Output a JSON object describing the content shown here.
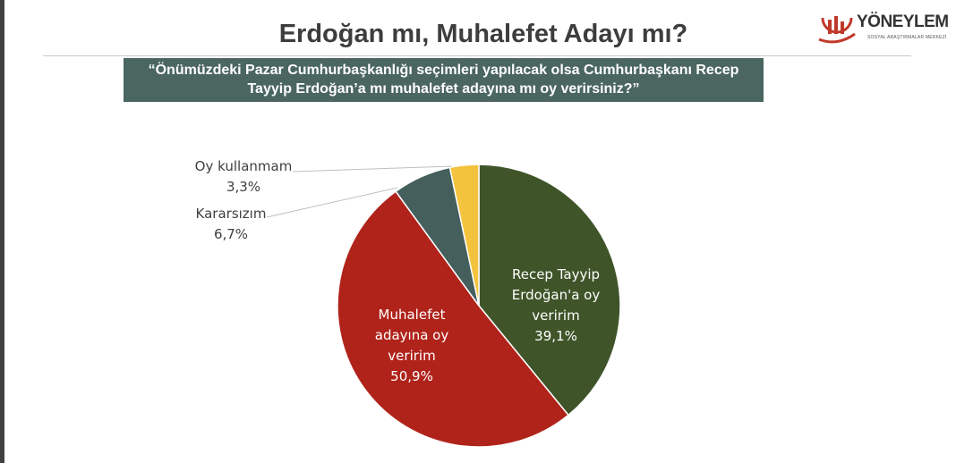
{
  "header": {
    "title": "Erdoğan mı, Muhalefet Adayı mı?",
    "question_line1": "“Önümüzdeki Pazar Cumhurbaşkanlığı seçimleri yapılacak olsa Cumhurbaşkanı Recep",
    "question_line2": "Tayyip Erdoğan’a mı muhalefet adayına mı oy verirsiniz?”"
  },
  "logo": {
    "name": "YÖNEYLEM",
    "subtitle": "SOSYAL ARAŞTIRMALAR MERKEZİ",
    "color": "#c0392b"
  },
  "chart_data": {
    "type": "pie",
    "start": "12 o'clock, clockwise",
    "slices": [
      {
        "label_lines": [
          "Recep Tayyip",
          "Erdoğan'a oy",
          "veririm"
        ],
        "value": 39.1,
        "value_text": "39,1%",
        "color": "#3f5429"
      },
      {
        "label_lines": [
          "Muhalefet",
          "adayına oy",
          "veririm"
        ],
        "value": 50.9,
        "value_text": "50,9%",
        "color": "#b0231a"
      },
      {
        "label_lines": [
          "Kararsızım"
        ],
        "value": 6.7,
        "value_text": "6,7%",
        "color": "#445f5c"
      },
      {
        "label_lines": [
          "Oy kullanmam"
        ],
        "value": 3.3,
        "value_text": "3,3%",
        "color": "#f4c33d"
      }
    ]
  }
}
